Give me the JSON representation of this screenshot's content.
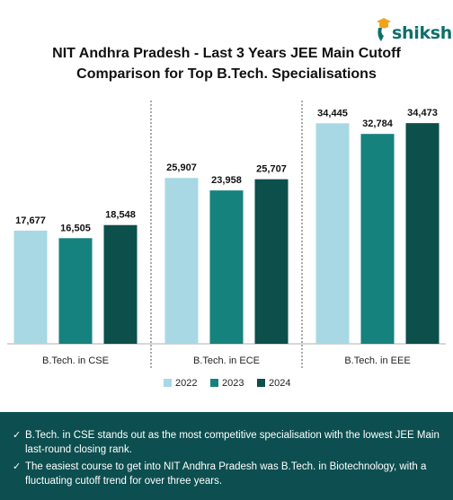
{
  "brand": {
    "name": "shiksha"
  },
  "chart_data": {
    "type": "bar",
    "title": "NIT Andhra Pradesh - Last 3 Years JEE Main Cutoff Comparison for Top B.Tech. Specialisations",
    "title_lines": [
      "NIT Andhra Pradesh - Last 3 Years JEE Main Cutoff",
      "Comparison for Top B.Tech. Specialisations"
    ],
    "categories": [
      "B.Tech. in CSE",
      "B.Tech. in ECE",
      "B.Tech. in EEE"
    ],
    "series": [
      {
        "name": "2022",
        "color": "#a8d8e4",
        "values": [
          17677,
          25907,
          34445
        ],
        "labels": [
          "17,677",
          "25,907",
          "34,445"
        ]
      },
      {
        "name": "2023",
        "color": "#16827e",
        "values": [
          16505,
          23958,
          32784
        ],
        "labels": [
          "16,505",
          "23,958",
          "32,784"
        ]
      },
      {
        "name": "2024",
        "color": "#0c4f4b",
        "values": [
          18548,
          25707,
          34473
        ],
        "labels": [
          "18,548",
          "25,707",
          "34,473"
        ]
      }
    ],
    "ylim": [
      0,
      40000
    ],
    "legend_position": "bottom",
    "xlabel": "",
    "ylabel": ""
  },
  "notes": [
    "B.Tech. in CSE stands out as the most competitive specialisation with the lowest JEE Main last-round closing rank.",
    "The easiest course to get into NIT Andhra Pradesh was B.Tech. in Biotechnology, with a fluctuating cutoff trend for over three years."
  ],
  "colors": {
    "footer_bg": "#0d4f50",
    "brand": "#0e6f6b"
  }
}
